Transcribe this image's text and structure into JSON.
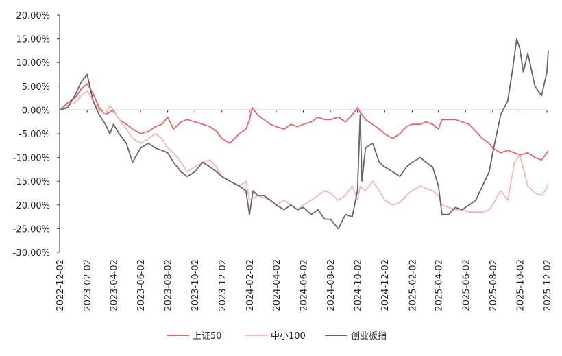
{
  "chart_data": {
    "type": "line",
    "y_ticks": [
      "20.00%",
      "15.00%",
      "10.00%",
      "5.00%",
      "0.00%",
      "-5.00%",
      "-10.00%",
      "-15.00%",
      "-20.00%",
      "-25.00%",
      "-30.00%"
    ],
    "ylim": [
      -30,
      20
    ],
    "x_ticks": [
      "2022-12-02",
      "2023-02-02",
      "2023-04-02",
      "2023-06-02",
      "2023-08-02",
      "2023-10-02",
      "2023-12-02",
      "2024-02-02",
      "2024-04-02",
      "2024-06-02",
      "2024-08-02",
      "2024-10-02",
      "2024-12-02",
      "2025-02-02",
      "2025-04-02",
      "2025-06-02",
      "2025-08-02",
      "2025-10-02",
      "2025-12-02"
    ],
    "legend_position": "bottom",
    "grid": false,
    "series": [
      {
        "name": "上证50",
        "color": "#e06666",
        "points": [
          [
            "2022-12-02",
            0
          ],
          [
            "2022-12-20",
            1.5
          ],
          [
            "2023-01-05",
            2.5
          ],
          [
            "2023-01-20",
            4.5
          ],
          [
            "2023-02-02",
            5.5
          ],
          [
            "2023-02-15",
            3.5
          ],
          [
            "2023-03-01",
            0.5
          ],
          [
            "2023-03-15",
            -1
          ],
          [
            "2023-04-02",
            0
          ],
          [
            "2023-04-15",
            -2
          ],
          [
            "2023-05-01",
            -3
          ],
          [
            "2023-05-15",
            -4
          ],
          [
            "2023-06-02",
            -5
          ],
          [
            "2023-06-20",
            -4.5
          ],
          [
            "2023-07-05",
            -3.5
          ],
          [
            "2023-07-20",
            -3
          ],
          [
            "2023-08-02",
            -1.5
          ],
          [
            "2023-08-15",
            -4
          ],
          [
            "2023-09-01",
            -2.5
          ],
          [
            "2023-09-15",
            -2
          ],
          [
            "2023-10-02",
            -2.5
          ],
          [
            "2023-10-20",
            -3
          ],
          [
            "2023-11-05",
            -3.5
          ],
          [
            "2023-11-20",
            -4.5
          ],
          [
            "2023-12-02",
            -6
          ],
          [
            "2023-12-20",
            -7
          ],
          [
            "2024-01-10",
            -5
          ],
          [
            "2024-01-25",
            -4
          ],
          [
            "2024-02-02",
            -2
          ],
          [
            "2024-02-08",
            0.5
          ],
          [
            "2024-02-20",
            -1
          ],
          [
            "2024-03-05",
            -2
          ],
          [
            "2024-03-20",
            -3
          ],
          [
            "2024-04-02",
            -3.5
          ],
          [
            "2024-04-20",
            -4
          ],
          [
            "2024-05-05",
            -3
          ],
          [
            "2024-05-20",
            -3.5
          ],
          [
            "2024-06-02",
            -3
          ],
          [
            "2024-06-20",
            -2.5
          ],
          [
            "2024-07-05",
            -1.5
          ],
          [
            "2024-07-20",
            -2
          ],
          [
            "2024-08-02",
            -2
          ],
          [
            "2024-08-20",
            -1.5
          ],
          [
            "2024-09-05",
            -2.5
          ],
          [
            "2024-09-20",
            -1
          ],
          [
            "2024-10-02",
            0.5
          ],
          [
            "2024-10-08",
            -0.5
          ],
          [
            "2024-10-20",
            -2
          ],
          [
            "2024-11-05",
            -3
          ],
          [
            "2024-11-20",
            -4
          ],
          [
            "2024-12-02",
            -5
          ],
          [
            "2024-12-20",
            -6
          ],
          [
            "2025-01-05",
            -5
          ],
          [
            "2025-01-20",
            -3.5
          ],
          [
            "2025-02-02",
            -3
          ],
          [
            "2025-02-20",
            -3
          ],
          [
            "2025-03-05",
            -2.5
          ],
          [
            "2025-03-20",
            -3
          ],
          [
            "2025-04-02",
            -4
          ],
          [
            "2025-04-10",
            -2
          ],
          [
            "2025-04-25",
            -2
          ],
          [
            "2025-05-10",
            -2
          ],
          [
            "2025-05-25",
            -2.5
          ],
          [
            "2025-06-10",
            -3
          ],
          [
            "2025-06-25",
            -4.5
          ],
          [
            "2025-07-10",
            -6
          ],
          [
            "2025-07-25",
            -7
          ],
          [
            "2025-08-02",
            -8
          ],
          [
            "2025-08-20",
            -9
          ],
          [
            "2025-09-05",
            -8.5
          ],
          [
            "2025-09-20",
            -9
          ],
          [
            "2025-10-02",
            -9.5
          ],
          [
            "2025-10-20",
            -9
          ],
          [
            "2025-11-05",
            -10
          ],
          [
            "2025-11-20",
            -10.5
          ],
          [
            "2025-12-02",
            -9
          ],
          [
            "2025-12-05",
            -8.5
          ]
        ]
      },
      {
        "name": "中小100",
        "color": "#f4b6b6",
        "points": [
          [
            "2022-12-02",
            0
          ],
          [
            "2022-12-20",
            1
          ],
          [
            "2023-01-05",
            1.5
          ],
          [
            "2023-01-20",
            3
          ],
          [
            "2023-02-02",
            4
          ],
          [
            "2023-02-15",
            2
          ],
          [
            "2023-03-01",
            0
          ],
          [
            "2023-03-15",
            -1
          ],
          [
            "2023-03-25",
            1
          ],
          [
            "2023-04-02",
            0
          ],
          [
            "2023-04-15",
            -2
          ],
          [
            "2023-05-01",
            -4
          ],
          [
            "2023-05-15",
            -6
          ],
          [
            "2023-06-02",
            -7
          ],
          [
            "2023-06-20",
            -6
          ],
          [
            "2023-07-05",
            -5
          ],
          [
            "2023-07-20",
            -6
          ],
          [
            "2023-08-02",
            -8
          ],
          [
            "2023-08-15",
            -9
          ],
          [
            "2023-09-01",
            -11
          ],
          [
            "2023-09-15",
            -13
          ],
          [
            "2023-10-02",
            -12
          ],
          [
            "2023-10-20",
            -11
          ],
          [
            "2023-11-05",
            -10.5
          ],
          [
            "2023-11-20",
            -12
          ],
          [
            "2023-12-02",
            -14
          ],
          [
            "2023-12-20",
            -15
          ],
          [
            "2024-01-10",
            -16
          ],
          [
            "2024-01-25",
            -15
          ],
          [
            "2024-02-02",
            -19
          ],
          [
            "2024-02-20",
            -18
          ],
          [
            "2024-03-05",
            -18.5
          ],
          [
            "2024-03-20",
            -19
          ],
          [
            "2024-04-02",
            -20
          ],
          [
            "2024-04-20",
            -19
          ],
          [
            "2024-05-05",
            -20
          ],
          [
            "2024-05-20",
            -21
          ],
          [
            "2024-06-02",
            -20
          ],
          [
            "2024-06-20",
            -19
          ],
          [
            "2024-07-05",
            -18
          ],
          [
            "2024-07-20",
            -17
          ],
          [
            "2024-08-02",
            -17.5
          ],
          [
            "2024-08-20",
            -19
          ],
          [
            "2024-09-05",
            -18
          ],
          [
            "2024-09-20",
            -16
          ],
          [
            "2024-10-02",
            -19
          ],
          [
            "2024-10-08",
            -16
          ],
          [
            "2024-10-20",
            -17
          ],
          [
            "2024-11-05",
            -15
          ],
          [
            "2024-11-20",
            -17
          ],
          [
            "2024-12-02",
            -19
          ],
          [
            "2024-12-20",
            -20
          ],
          [
            "2025-01-05",
            -19.5
          ],
          [
            "2025-01-20",
            -18
          ],
          [
            "2025-02-02",
            -17
          ],
          [
            "2025-02-20",
            -16
          ],
          [
            "2025-03-05",
            -16.5
          ],
          [
            "2025-03-20",
            -17
          ],
          [
            "2025-04-02",
            -18
          ],
          [
            "2025-04-10",
            -20
          ],
          [
            "2025-04-25",
            -20.5
          ],
          [
            "2025-05-10",
            -21
          ],
          [
            "2025-05-25",
            -21
          ],
          [
            "2025-06-10",
            -21.5
          ],
          [
            "2025-06-25",
            -21.5
          ],
          [
            "2025-07-10",
            -21.5
          ],
          [
            "2025-07-25",
            -21
          ],
          [
            "2025-08-02",
            -20
          ],
          [
            "2025-08-20",
            -17
          ],
          [
            "2025-09-05",
            -19
          ],
          [
            "2025-09-20",
            -11
          ],
          [
            "2025-10-02",
            -9.5
          ],
          [
            "2025-10-20",
            -16
          ],
          [
            "2025-11-05",
            -17.5
          ],
          [
            "2025-11-20",
            -18
          ],
          [
            "2025-12-02",
            -16.5
          ],
          [
            "2025-12-05",
            -15.5
          ]
        ]
      },
      {
        "name": "创业板指",
        "color": "#666666",
        "points": [
          [
            "2022-12-02",
            0
          ],
          [
            "2022-12-20",
            0.5
          ],
          [
            "2023-01-05",
            3
          ],
          [
            "2023-01-20",
            6
          ],
          [
            "2023-02-02",
            7.5
          ],
          [
            "2023-02-15",
            2
          ],
          [
            "2023-03-01",
            -1
          ],
          [
            "2023-03-15",
            -3
          ],
          [
            "2023-03-25",
            -5
          ],
          [
            "2023-04-02",
            -3
          ],
          [
            "2023-04-15",
            -5
          ],
          [
            "2023-05-01",
            -7
          ],
          [
            "2023-05-15",
            -11
          ],
          [
            "2023-06-02",
            -8
          ],
          [
            "2023-06-20",
            -7
          ],
          [
            "2023-07-05",
            -8
          ],
          [
            "2023-07-20",
            -8.5
          ],
          [
            "2023-08-02",
            -9
          ],
          [
            "2023-08-15",
            -11
          ],
          [
            "2023-09-01",
            -13
          ],
          [
            "2023-09-15",
            -14
          ],
          [
            "2023-10-02",
            -13
          ],
          [
            "2023-10-20",
            -11
          ],
          [
            "2023-11-05",
            -12
          ],
          [
            "2023-11-20",
            -13
          ],
          [
            "2023-12-02",
            -14
          ],
          [
            "2023-12-20",
            -15
          ],
          [
            "2024-01-10",
            -16
          ],
          [
            "2024-01-25",
            -17
          ],
          [
            "2024-02-02",
            -22
          ],
          [
            "2024-02-10",
            -17
          ],
          [
            "2024-02-20",
            -18
          ],
          [
            "2024-03-05",
            -18
          ],
          [
            "2024-03-20",
            -19
          ],
          [
            "2024-04-02",
            -20
          ],
          [
            "2024-04-20",
            -21
          ],
          [
            "2024-05-05",
            -20
          ],
          [
            "2024-05-20",
            -21
          ],
          [
            "2024-06-02",
            -20.5
          ],
          [
            "2024-06-20",
            -22
          ],
          [
            "2024-07-05",
            -21
          ],
          [
            "2024-07-20",
            -23
          ],
          [
            "2024-08-02",
            -23
          ],
          [
            "2024-08-20",
            -25
          ],
          [
            "2024-09-05",
            -22
          ],
          [
            "2024-09-20",
            -22.5
          ],
          [
            "2024-10-02",
            -17
          ],
          [
            "2024-10-08",
            -1
          ],
          [
            "2024-10-12",
            -15
          ],
          [
            "2024-10-20",
            -8
          ],
          [
            "2024-11-05",
            -7
          ],
          [
            "2024-11-20",
            -11
          ],
          [
            "2024-12-02",
            -12
          ],
          [
            "2024-12-20",
            -13
          ],
          [
            "2025-01-05",
            -14
          ],
          [
            "2025-01-20",
            -12
          ],
          [
            "2025-02-02",
            -11
          ],
          [
            "2025-02-20",
            -10
          ],
          [
            "2025-03-05",
            -11
          ],
          [
            "2025-03-20",
            -12
          ],
          [
            "2025-04-02",
            -16
          ],
          [
            "2025-04-10",
            -22
          ],
          [
            "2025-04-25",
            -22
          ],
          [
            "2025-05-10",
            -20.5
          ],
          [
            "2025-05-25",
            -21
          ],
          [
            "2025-06-10",
            -20
          ],
          [
            "2025-06-25",
            -19
          ],
          [
            "2025-07-10",
            -16
          ],
          [
            "2025-07-25",
            -13
          ],
          [
            "2025-08-02",
            -9
          ],
          [
            "2025-08-20",
            -1
          ],
          [
            "2025-09-05",
            2
          ],
          [
            "2025-09-15",
            8
          ],
          [
            "2025-09-25",
            15
          ],
          [
            "2025-10-02",
            13
          ],
          [
            "2025-10-10",
            8
          ],
          [
            "2025-10-20",
            12
          ],
          [
            "2025-11-05",
            5
          ],
          [
            "2025-11-20",
            3
          ],
          [
            "2025-12-02",
            8
          ],
          [
            "2025-12-05",
            12.5
          ]
        ]
      }
    ]
  }
}
